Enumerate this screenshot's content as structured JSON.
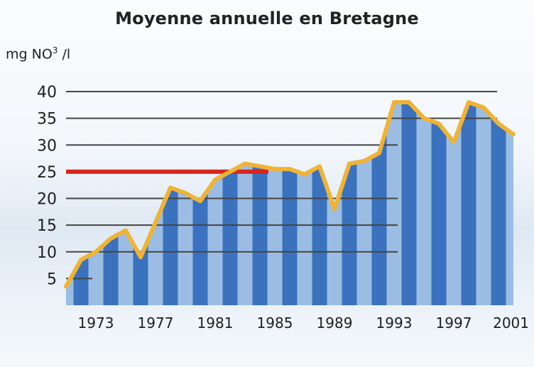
{
  "chart_data": {
    "type": "area",
    "title": "Moyenne annuelle en Bretagne",
    "ylabel_main": "mg NO",
    "ylabel_sup": "3",
    "ylabel_tail": " /l",
    "ylim": [
      0,
      40
    ],
    "yticks": [
      5,
      10,
      15,
      20,
      25,
      30,
      35,
      40
    ],
    "xticks": [
      1973,
      1977,
      1981,
      1985,
      1989,
      1993,
      1997,
      2001
    ],
    "xlim": [
      1971,
      2001
    ],
    "reference_line": 25,
    "grid": "horizontal",
    "colors": {
      "bar_dark": "#3a72be",
      "bar_light": "#9bbde3",
      "line": "#f0b335",
      "reference": "#d8251c",
      "grid": "#444444"
    },
    "x": [
      1971,
      1972,
      1973,
      1974,
      1975,
      1976,
      1977,
      1978,
      1979,
      1980,
      1981,
      1982,
      1983,
      1984,
      1985,
      1986,
      1987,
      1988,
      1989,
      1990,
      1991,
      1992,
      1993,
      1994,
      1995,
      1996,
      1997,
      1998,
      1999,
      2000,
      2001
    ],
    "values": [
      3.5,
      8.5,
      10,
      12.5,
      14,
      9,
      15.5,
      22,
      21,
      19.5,
      23.5,
      25,
      26.5,
      26,
      25.5,
      25.5,
      24.5,
      26,
      18,
      26.5,
      27,
      28.5,
      38,
      38,
      35,
      34,
      30.5,
      38,
      37,
      34,
      32
    ]
  }
}
